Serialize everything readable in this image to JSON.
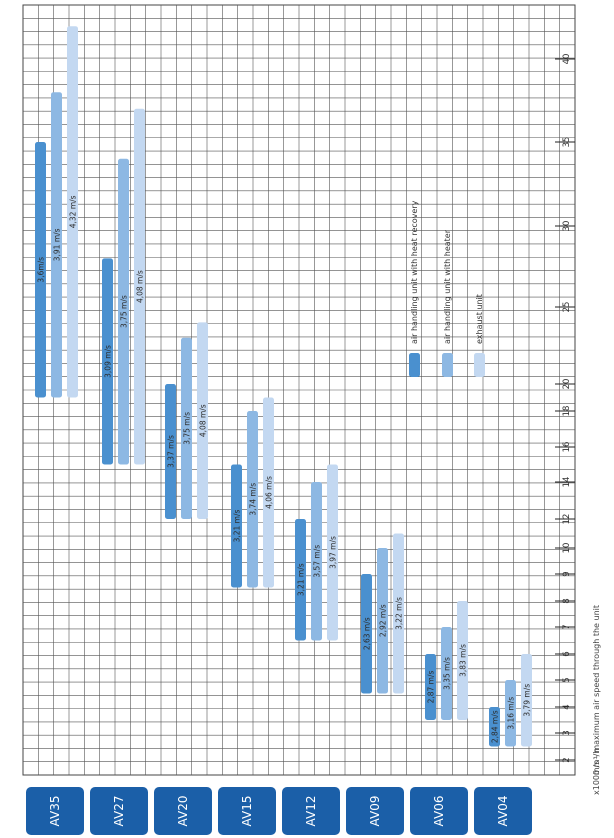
{
  "chart_data": {
    "type": "bar",
    "orientation": "horizontal-rotated",
    "categories": [
      "AV35",
      "AV27",
      "AV20",
      "AV15",
      "AV12",
      "AV09",
      "AV06",
      "AV04"
    ],
    "series": [
      {
        "name": "air handling unit with heat recovery",
        "color": "#4a90cf",
        "ranges": [
          [
            19,
            35
          ],
          [
            15,
            28
          ],
          [
            12,
            20
          ],
          [
            8.5,
            15
          ],
          [
            6.5,
            12
          ],
          [
            4.5,
            9
          ],
          [
            3.5,
            6
          ],
          [
            2.5,
            4
          ]
        ],
        "labels": [
          "3,6m/s",
          "3,09 m/s",
          "3,37 m/s",
          "3,21 m/s",
          "3,21 m/s",
          "2,63 m/s",
          "2,87 m/s",
          "2,84 m/s"
        ]
      },
      {
        "name": "air handling unit with heater",
        "color": "#8db8e3",
        "ranges": [
          [
            19,
            38
          ],
          [
            15,
            34
          ],
          [
            12,
            23
          ],
          [
            8.5,
            18
          ],
          [
            6.5,
            14
          ],
          [
            4.5,
            10
          ],
          [
            3.5,
            7
          ],
          [
            2.5,
            5
          ]
        ],
        "labels": [
          "3,91 m/s",
          "3,75 m/s",
          "3,75 m/s",
          "3,74 m/s",
          "3,57 m/s",
          "2,92 m/s",
          "3,35 m/s",
          "3,16 m/s"
        ]
      },
      {
        "name": "exhaust unit",
        "color": "#c3d8f1",
        "ranges": [
          [
            19,
            42
          ],
          [
            15,
            37
          ],
          [
            12,
            24
          ],
          [
            8.5,
            19
          ],
          [
            6.5,
            15
          ],
          [
            4.5,
            11
          ],
          [
            3.5,
            8
          ],
          [
            2.5,
            6
          ]
        ],
        "labels": [
          "4,32 m/s",
          "4,08 m/s",
          "4,08 m/s",
          "4,06 m/s",
          "3,97 m/s",
          "3,22 m/s",
          "3,83 m/s",
          "3,79 m/s"
        ]
      }
    ],
    "axis_ticks": [
      "2",
      "3",
      "4",
      "5",
      "6",
      "7",
      "8",
      "9",
      "10",
      "12",
      "14",
      "16",
      "18",
      "20",
      "25",
      "30",
      "35",
      "40"
    ],
    "axis_unit": "x1000 m³/h",
    "footnote": "m/s - maximum air speed through the unit",
    "grid": true,
    "legend_placement": "inside-right"
  }
}
